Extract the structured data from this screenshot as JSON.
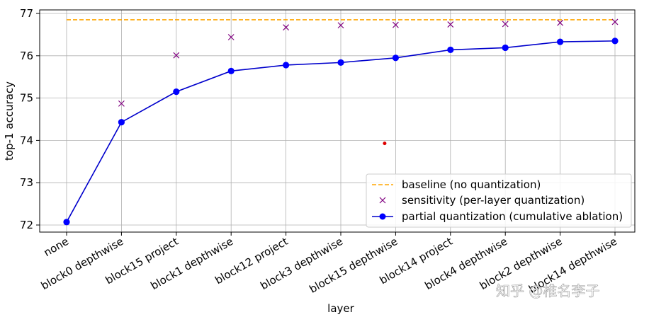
{
  "chart_data": {
    "type": "line",
    "title": "",
    "xlabel": "layer",
    "ylabel": "top-1 accuracy",
    "categories": [
      "none",
      "block0 depthwise",
      "block15 project",
      "block1 depthwise",
      "block12 project",
      "block3 depthwise",
      "block15 depthwise",
      "block14 project",
      "block4 depthwise",
      "block2 depthwise",
      "block14 depthwise"
    ],
    "ylim": [
      71.8,
      77.1
    ],
    "yticks": [
      72,
      73,
      74,
      75,
      76,
      77
    ],
    "grid": true,
    "legend_position": "lower-right",
    "series": [
      {
        "name": "baseline (no quantization)",
        "style": "dashed-line",
        "color": "#ffa500",
        "values": [
          76.85,
          76.85,
          76.85,
          76.85,
          76.85,
          76.85,
          76.85,
          76.85,
          76.85,
          76.85,
          76.85
        ]
      },
      {
        "name": "sensitivity (per-layer quantization)",
        "style": "x-marker",
        "color": "#800080",
        "values": [
          null,
          74.87,
          76.01,
          76.44,
          76.67,
          76.72,
          76.73,
          76.74,
          76.75,
          76.78,
          76.8
        ]
      },
      {
        "name": "partial quantization (cumulative ablation)",
        "style": "line-with-dots",
        "color": "#0000cc",
        "values": [
          72.07,
          74.43,
          75.15,
          75.64,
          75.78,
          75.84,
          75.95,
          76.14,
          76.19,
          76.33,
          76.35
        ]
      }
    ],
    "annotations": [
      {
        "type": "red-dot",
        "x_index": 5.8,
        "y": 73.93,
        "color": "#dd0000"
      }
    ]
  },
  "watermark": "知乎 @椎名李子"
}
